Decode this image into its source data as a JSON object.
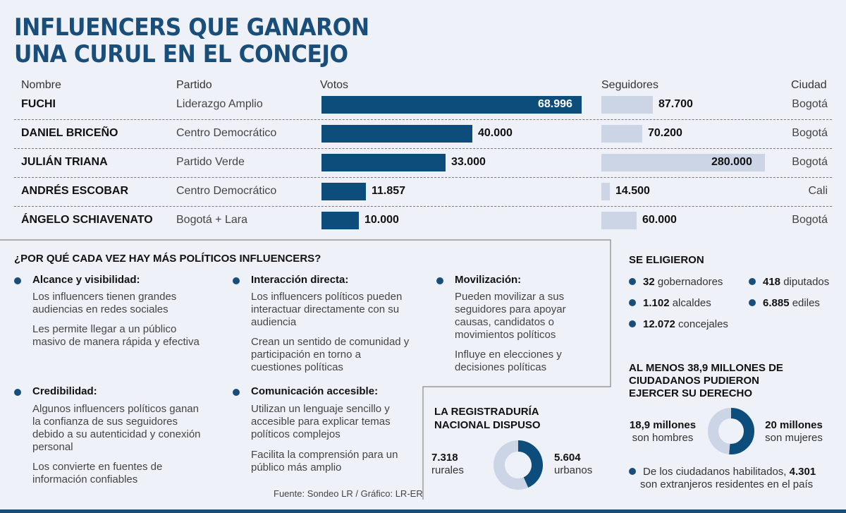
{
  "title_line1": "INFLUENCERS QUE GANARON",
  "title_line2": "UNA CURUL EN EL CONCEJO",
  "headers": {
    "name": "Nombre",
    "party": "Partido",
    "votes": "Votos",
    "followers": "Seguidores",
    "city": "Ciudad"
  },
  "rows": [
    {
      "name": "FUCHI",
      "party": "Liderazgo Amplio",
      "votes_label": "68.996",
      "followers_label": "87.700",
      "city": "Bogotá"
    },
    {
      "name": "DANIEL BRICEÑO",
      "party": "Centro Democrático",
      "votes_label": "40.000",
      "followers_label": "70.200",
      "city": "Bogotá"
    },
    {
      "name": "JULIÁN TRIANA",
      "party": "Partido Verde",
      "votes_label": "33.000",
      "followers_label": "280.000",
      "city": "Bogotá"
    },
    {
      "name": "ANDRÉS ESCOBAR",
      "party": "Centro Democrático",
      "votes_label": "11.857",
      "followers_label": "14.500",
      "city": "Cali"
    },
    {
      "name": "ÁNGELO SCHIAVENATO",
      "party": "Bogotá + Lara",
      "votes_label": "10.000",
      "followers_label": "60.000",
      "city": "Bogotá"
    }
  ],
  "chart_data": [
    {
      "type": "bar",
      "categories": [
        "FUCHI",
        "DANIEL BRICEÑO",
        "JULIÁN TRIANA",
        "ANDRÉS ESCOBAR",
        "ÁNGELO SCHIAVENATO"
      ],
      "series": [
        {
          "name": "Votos",
          "values": [
            68996,
            40000,
            33000,
            11857,
            10000
          ]
        },
        {
          "name": "Seguidores",
          "values": [
            87700,
            70200,
            280000,
            14500,
            60000
          ]
        }
      ],
      "title": "INFLUENCERS QUE GANARON UNA CURUL EN EL CONCEJO"
    },
    {
      "type": "pie",
      "title": "LA REGISTRADURÍA NACIONAL DISPUSO",
      "categories": [
        "rurales",
        "urbanos"
      ],
      "values": [
        7318,
        5604
      ]
    },
    {
      "type": "pie",
      "title": "AL MENOS 38,9 MILLONES DE CIUDADANOS PUDIERON EJERCER SU DERECHO",
      "categories": [
        "son hombres",
        "son mujeres"
      ],
      "values": [
        18.9,
        20
      ]
    }
  ],
  "why": {
    "heading": "¿POR QUÉ CADA VEZ HAY MÁS POLÍTICOS INFLUENCERS?",
    "items": [
      {
        "title": "Alcance y visibilidad:",
        "p1": "Los influencers tienen grandes audiencias en redes sociales",
        "p2": "Les permite llegar a un público masivo de manera rápida y efectiva"
      },
      {
        "title": "Credibilidad:",
        "p1": "Algunos influencers políticos ganan la confianza de sus seguidores debido a su autenticidad y conexión personal",
        "p2": " Los convierte en fuentes de información confiables"
      },
      {
        "title": "Interacción directa:",
        "p1": "Los influencers políticos pueden interactuar directamente con su audiencia",
        "p2": "Crean un sentido de comunidad y participación en torno a cuestiones políticas"
      },
      {
        "title": "Comunicación accesible:",
        "p1": "Utilizan un lenguaje sencillo y accesible para explicar temas políticos complejos",
        "p2": "Facilita la comprensión para un público más amplio"
      },
      {
        "title": "Movilización:",
        "p1": "Pueden movilizar a sus seguidores para apoyar causas,  candidatos o movimientos políticos",
        "p2": "Influye en elecciones y decisiones políticas"
      }
    ]
  },
  "elected": {
    "heading": "SE ELIGIERON",
    "items": [
      {
        "num": "32",
        "label": " gobernadores"
      },
      {
        "num": "418",
        "label": " diputados"
      },
      {
        "num": "1.102",
        "label": " alcaldes"
      },
      {
        "num": "6.885",
        "label": " ediles"
      },
      {
        "num": "12.072",
        "label": " concejales"
      }
    ]
  },
  "registry": {
    "heading1": "LA REGISTRADURÍA",
    "heading2": "NACIONAL DISPUSO",
    "rural_num": "7.318",
    "rural_label": "rurales",
    "urban_num": "5.604",
    "urban_label": "urbanos"
  },
  "citizens": {
    "heading1": "AL MENOS 38,9 MILLONES DE",
    "heading2": "CIUDADANOS PUDIERON",
    "heading3": "EJERCER SU DERECHO",
    "men_num": "18,9 millones",
    "men_label": "son hombres",
    "women_num": "20 millones",
    "women_label": "son mujeres",
    "note_pre": "De los ciudadanos habilitados, ",
    "note_num": "4.301",
    "note_post": "son extranjeros residentes en el país"
  },
  "source": "Fuente: Sondeo LR / Gráfico: LR-ER",
  "colors": {
    "dark_blue": "#0d4d7c",
    "title_blue": "#1a4e7a",
    "light_blue": "#ccd5e6",
    "background": "#eef1f7"
  }
}
